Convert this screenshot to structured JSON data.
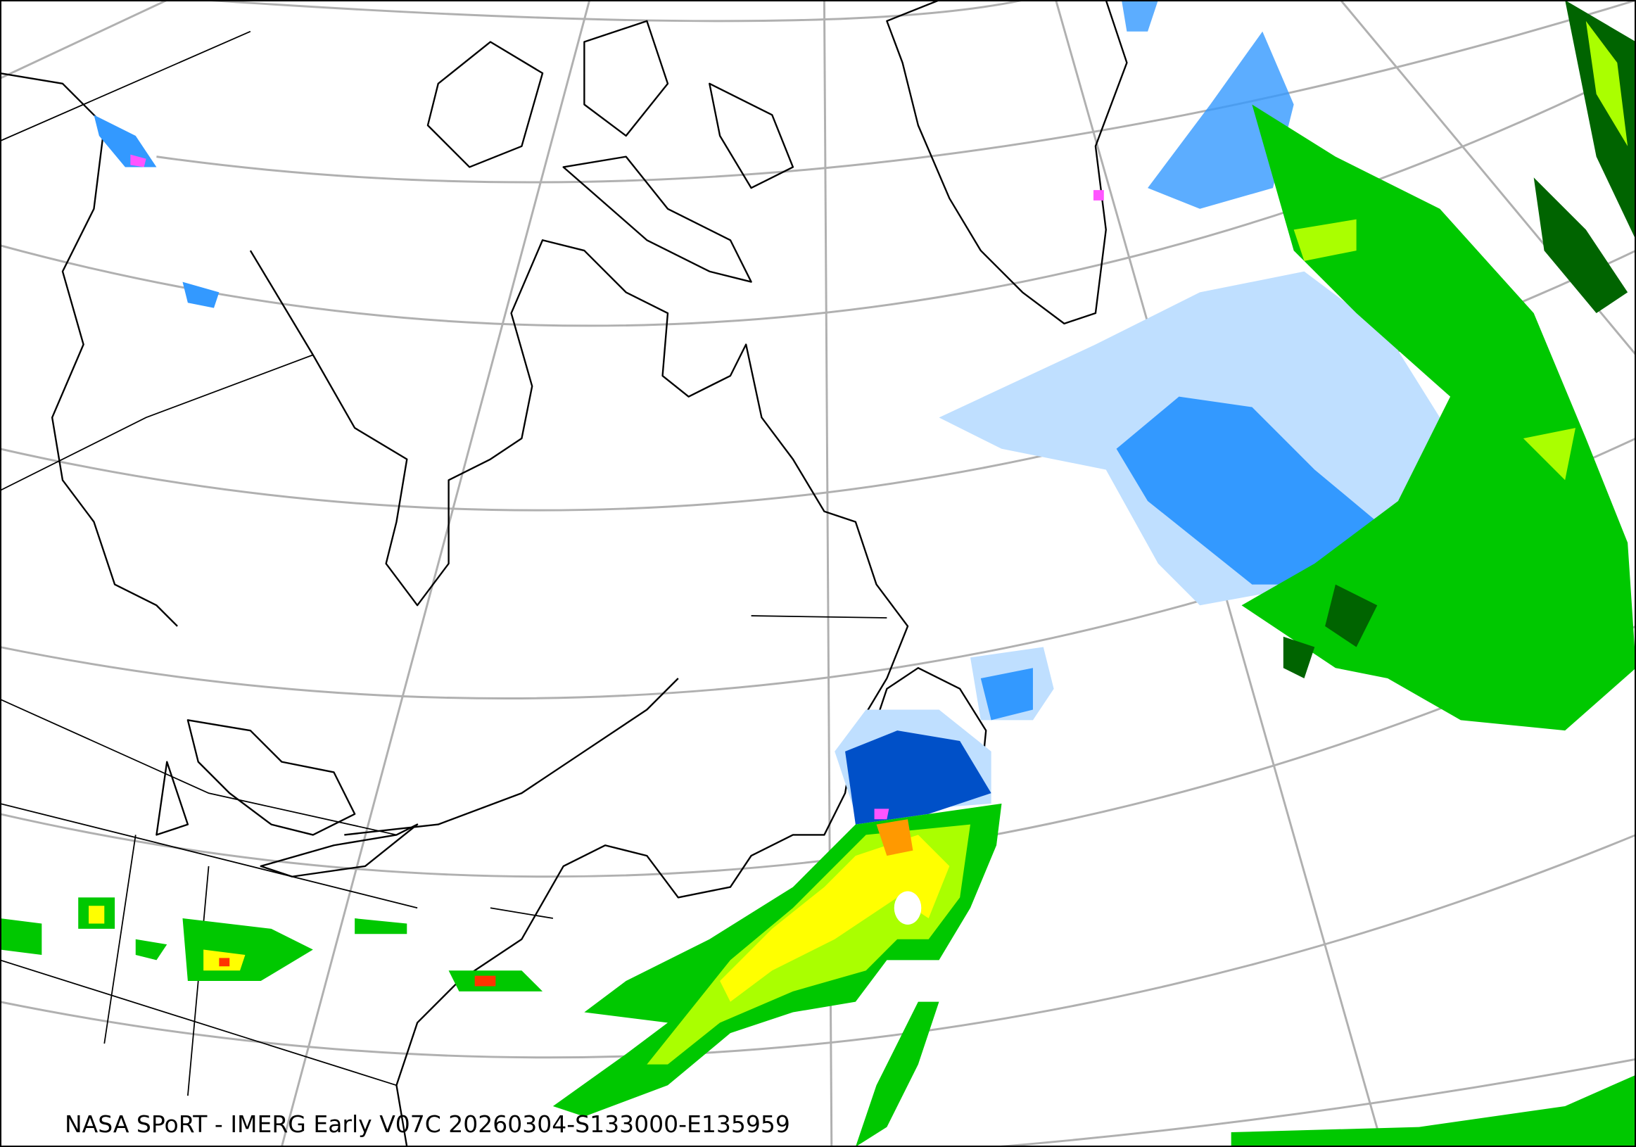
{
  "caption": "NASA SPoRT - IMERG Early V07C 20260304-S133000-E135959",
  "colors": {
    "graticule": "#b0b0b0",
    "coastline": "#000000",
    "precip_light_blue": "#bfdfff",
    "precip_blue": "#3399ff",
    "precip_dark_blue": "#0050c8",
    "precip_dark_green": "#006400",
    "precip_green": "#00c800",
    "precip_lime": "#aaff00",
    "precip_yellow": "#ffff00",
    "precip_orange": "#ff9900",
    "precip_red": "#ff3300",
    "precip_magenta": "#ff55ff"
  }
}
